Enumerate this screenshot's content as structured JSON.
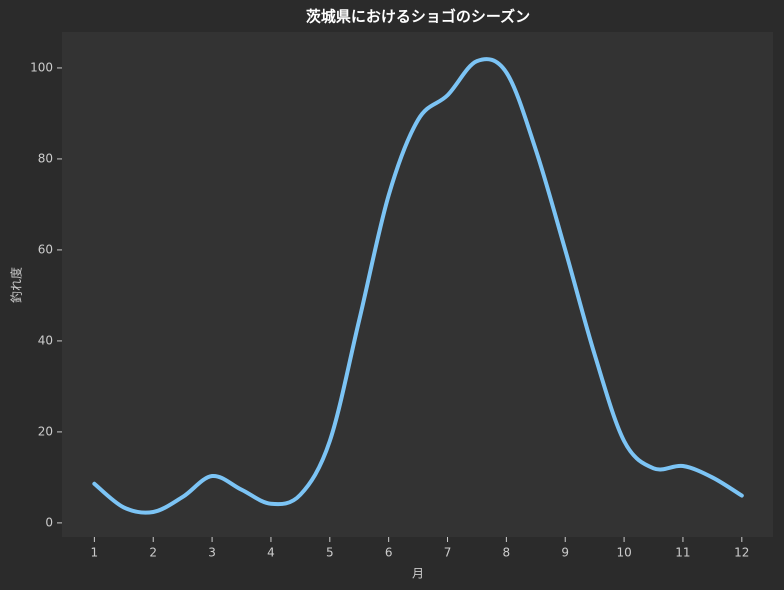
{
  "chart_data": {
    "type": "line",
    "title": "茨城県におけるショゴのシーズン",
    "xlabel": "月",
    "ylabel": "釣れ度",
    "x": [
      1,
      1.5,
      2,
      2.5,
      3,
      3.5,
      4,
      4.5,
      5,
      5.5,
      6,
      6.5,
      7,
      7.5,
      8,
      8.5,
      9,
      9.5,
      10,
      10.5,
      11,
      11.5,
      12
    ],
    "values": [
      8.6,
      3.4,
      2.4,
      5.7,
      10.3,
      7.3,
      4.2,
      6.2,
      18,
      44.6,
      72,
      88.6,
      94,
      101.5,
      99,
      82,
      60,
      37,
      18,
      12,
      12.5,
      10,
      6
    ],
    "color": "#7cc4f5",
    "xlim": [
      0.45,
      12.53
    ],
    "ylim": [
      -3.1,
      107.9
    ],
    "xticks": [
      1,
      2,
      3,
      4,
      5,
      6,
      7,
      8,
      9,
      10,
      11,
      12
    ],
    "yticks": [
      0,
      20,
      40,
      60,
      80,
      100
    ],
    "grid": false
  }
}
